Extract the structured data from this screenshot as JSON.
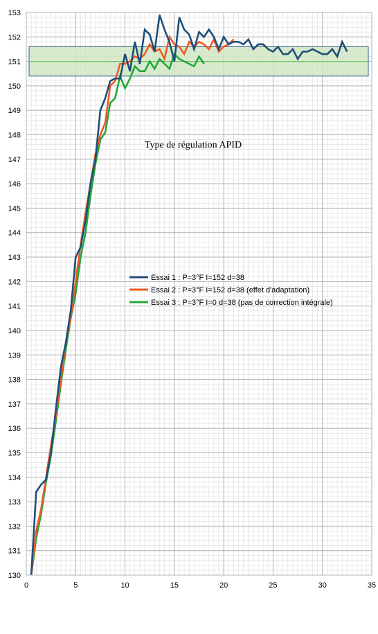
{
  "chart_data": {
    "type": "line",
    "title": "Type de régulation APID",
    "xlabel": "",
    "ylabel": "",
    "xlim": [
      0,
      35
    ],
    "ylim": [
      130,
      153
    ],
    "x_ticks": [
      0,
      5,
      10,
      15,
      20,
      25,
      30,
      35
    ],
    "y_ticks": [
      130,
      131,
      132,
      133,
      134,
      135,
      136,
      137,
      138,
      139,
      140,
      141,
      142,
      143,
      144,
      145,
      146,
      147,
      148,
      149,
      150,
      151,
      152,
      153
    ],
    "grid": true,
    "legend_position": "center",
    "target_band": {
      "y_min": 150.4,
      "y_max": 151.6,
      "center": 151.0,
      "fill_color": "#cfe6c0",
      "border_color": "#2e5f8a",
      "center_color": "#6fbf5f"
    },
    "series": [
      {
        "name": "Essai 1 :  P=3°F I=152 d=38",
        "color": "#1f4e79",
        "x": [
          0.5,
          1,
          1.5,
          2,
          2.5,
          3,
          3.5,
          4,
          4.5,
          5,
          5.5,
          6,
          6.5,
          7,
          7.5,
          8,
          8.5,
          9,
          9.5,
          10,
          10.5,
          11,
          11.5,
          12,
          12.5,
          13,
          13.5,
          14,
          14.5,
          15,
          15.5,
          16,
          16.5,
          17,
          17.5,
          18,
          18.5,
          19,
          19.5,
          20,
          20.5,
          21,
          21.5,
          22,
          22.5,
          23,
          23.5,
          24,
          24.5,
          25,
          25.5,
          26,
          26.5,
          27,
          27.5,
          28,
          28.5,
          29,
          29.5,
          30,
          30.5,
          31,
          31.5,
          32,
          32.5
        ],
        "values": [
          130.0,
          133.4,
          133.7,
          133.9,
          135.0,
          136.8,
          138.5,
          139.5,
          140.8,
          143.0,
          143.4,
          144.5,
          146.0,
          147.0,
          149.0,
          149.5,
          150.2,
          150.3,
          150.3,
          151.3,
          150.6,
          151.8,
          150.9,
          152.3,
          152.1,
          151.4,
          152.9,
          152.3,
          151.8,
          151.0,
          152.8,
          152.3,
          152.1,
          151.5,
          152.2,
          152.0,
          152.3,
          152.0,
          151.5,
          152.0,
          151.7,
          151.8,
          151.8,
          151.7,
          151.9,
          151.5,
          151.7,
          151.7,
          151.5,
          151.4,
          151.6,
          151.3,
          151.3,
          151.5,
          151.1,
          151.4,
          151.4,
          151.5,
          151.4,
          151.3,
          151.3,
          151.5,
          151.2,
          151.8,
          151.4
        ]
      },
      {
        "name": "Essai 2 :  P=3°F I=152 d=38 (effet d'adaptation)",
        "color": "#ef5a24",
        "x": [
          0.5,
          1,
          1.5,
          2,
          2.5,
          3,
          3.5,
          4,
          4.5,
          5,
          5.5,
          6,
          6.5,
          7,
          7.5,
          8,
          8.5,
          9,
          9.5,
          10,
          10.5,
          11,
          11.5,
          12,
          12.5,
          13,
          13.5,
          14,
          14.5,
          15,
          15.5,
          16,
          16.5,
          17,
          17.5,
          18,
          18.5,
          19,
          19.5,
          20,
          20.5,
          21
        ],
        "values": [
          130.0,
          131.8,
          132.7,
          134.0,
          135.3,
          136.5,
          138.0,
          139.5,
          140.5,
          142.0,
          143.5,
          144.8,
          146.0,
          147.2,
          148.0,
          148.5,
          150.0,
          150.2,
          150.9,
          150.9,
          151.0,
          151.2,
          151.1,
          151.3,
          151.7,
          151.4,
          151.5,
          151.1,
          152.0,
          151.7,
          151.6,
          151.3,
          151.8,
          151.6,
          151.8,
          151.7,
          151.5,
          151.9,
          151.4,
          151.6,
          151.7,
          151.9
        ]
      },
      {
        "name": "Essai 3 :  P=3°F I=0 d=38 (pas de correction intégrale)",
        "color": "#22a83a",
        "x": [
          0.5,
          1,
          1.5,
          2,
          2.5,
          3,
          3.5,
          4,
          4.5,
          5,
          5.5,
          6,
          6.5,
          7,
          7.5,
          8,
          8.5,
          9,
          9.5,
          10,
          10.5,
          11,
          11.5,
          12,
          12.5,
          13,
          13.5,
          14,
          14.5,
          15,
          15.5,
          16,
          16.5,
          17,
          17.5,
          18
        ],
        "values": [
          130.0,
          131.5,
          132.5,
          133.8,
          134.9,
          136.3,
          137.8,
          139.2,
          140.5,
          141.5,
          143.0,
          144.0,
          145.5,
          146.8,
          147.8,
          148.1,
          149.3,
          149.5,
          150.4,
          149.9,
          150.3,
          150.8,
          150.6,
          150.6,
          151.0,
          150.7,
          151.1,
          150.9,
          150.7,
          151.3,
          151.1,
          151.0,
          150.9,
          150.8,
          151.2,
          150.9
        ]
      }
    ]
  }
}
